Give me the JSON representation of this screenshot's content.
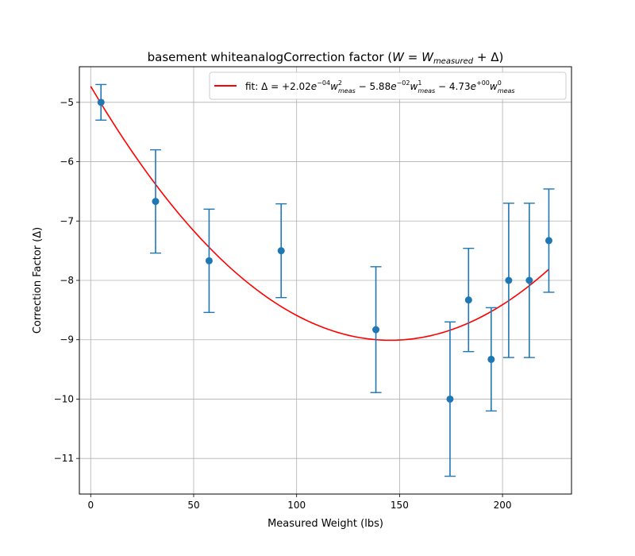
{
  "chart_data": {
    "type": "scatter",
    "title_prefix": "basement whiteanalogCorrection factor (",
    "title_math": "W = W_measured + Δ",
    "title_suffix": ")",
    "xlabel": "Measured Weight (lbs)",
    "ylabel": "Correction Factor (Δ)",
    "xlim": [
      -5.5,
      233.5
    ],
    "ylim": [
      -11.6,
      -4.4
    ],
    "xticks": [
      0,
      50,
      100,
      150,
      200
    ],
    "yticks": [
      -5,
      -6,
      -7,
      -8,
      -9,
      -10,
      -11
    ],
    "xtick_labels": [
      "0",
      "50",
      "100",
      "150",
      "200"
    ],
    "ytick_labels": [
      "−5",
      "−6",
      "−7",
      "−8",
      "−9",
      "−10",
      "−11"
    ],
    "grid": true,
    "legend_position": "top-right",
    "series": [
      {
        "kind": "errorbar",
        "color": "#1f77b4",
        "points": [
          {
            "x": 5,
            "y": -5.0,
            "err": 0.3
          },
          {
            "x": 31.5,
            "y": -6.67,
            "err": 0.87
          },
          {
            "x": 57.5,
            "y": -7.67,
            "err": 0.87
          },
          {
            "x": 92.5,
            "y": -7.5,
            "err": 0.79
          },
          {
            "x": 138.5,
            "y": -8.83,
            "err": 1.06
          },
          {
            "x": 174.5,
            "y": -10.0,
            "err": 1.3
          },
          {
            "x": 183.5,
            "y": -8.33,
            "err": 0.87
          },
          {
            "x": 194.5,
            "y": -9.33,
            "err": 0.87
          },
          {
            "x": 203,
            "y": -8.0,
            "err": 1.3
          },
          {
            "x": 213,
            "y": -8.0,
            "err": 1.3
          },
          {
            "x": 222.5,
            "y": -7.33,
            "err": 0.87
          }
        ]
      },
      {
        "kind": "fit",
        "color": "#ff0000",
        "legend_label": "fit: Δ = +2.02e^{−04}w²_meas − 5.88e^{−02}w¹_meas − 4.73e^{+00}w⁰_meas",
        "coefficients": [
          0.000202,
          -0.0588,
          -4.73
        ],
        "x_range": [
          0,
          222.5
        ]
      }
    ],
    "legend": {
      "prefix": "fit: Δ = +2.02",
      "terms": [
        {
          "base": "e",
          "exp": "−04",
          "var": "w",
          "pow": "2",
          "sub": "meas",
          "after": " − 5.88"
        },
        {
          "base": "e",
          "exp": "−02",
          "var": "w",
          "pow": "1",
          "sub": "meas",
          "after": " − 4.73"
        },
        {
          "base": "e",
          "exp": "+00",
          "var": "w",
          "pow": "0",
          "sub": "meas",
          "after": ""
        }
      ]
    }
  }
}
